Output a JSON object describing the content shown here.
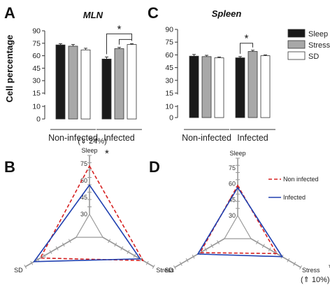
{
  "chart_data": [
    {
      "panel": "A",
      "type": "bar",
      "title": "MLN",
      "ylabel": "Cell percentage",
      "yticks": [
        "0",
        "10",
        "15",
        "30",
        "45",
        "60",
        "75",
        "90"
      ],
      "ylim": [
        0,
        90
      ],
      "axis_break": [
        10,
        15
      ],
      "groups": [
        "Non-infected",
        "Infected"
      ],
      "series": [
        {
          "name": "Sleep",
          "color": "#1a1a1a",
          "values": [
            73,
            56
          ],
          "errors": [
            1.5,
            2.5
          ]
        },
        {
          "name": "Stress",
          "color": "#a8a8a8",
          "values": [
            71.5,
            68.5
          ],
          "errors": [
            2.0,
            1.5
          ]
        },
        {
          "name": "SD",
          "color": "#ffffff",
          "values": [
            67,
            73.5
          ],
          "errors": [
            2.0,
            1.0
          ]
        }
      ],
      "significance": [
        {
          "group": "Infected",
          "from": "Sleep",
          "to": "SD",
          "label": "*"
        },
        {
          "group": "Infected",
          "from": "Stress",
          "to": "SD",
          "label": ""
        }
      ]
    },
    {
      "panel": "C",
      "type": "bar",
      "title": "Spleen",
      "yticks": [
        "0",
        "10",
        "15",
        "30",
        "45",
        "60",
        "75",
        "90"
      ],
      "ylim": [
        0,
        90
      ],
      "axis_break": [
        10,
        15
      ],
      "groups": [
        "Non-infected",
        "Infected"
      ],
      "series": [
        {
          "name": "Sleep",
          "color": "#1a1a1a",
          "values": [
            58.5,
            56.5
          ],
          "errors": [
            2.0,
            1.5
          ]
        },
        {
          "name": "Stress",
          "color": "#a8a8a8",
          "values": [
            58,
            64
          ],
          "errors": [
            1.5,
            1.5
          ]
        },
        {
          "name": "SD",
          "color": "#ffffff",
          "values": [
            56.5,
            59
          ],
          "errors": [
            1.0,
            1.0
          ]
        }
      ],
      "significance": [
        {
          "group": "Infected",
          "from": "Sleep",
          "to": "Stress",
          "label": "*"
        }
      ],
      "legend": [
        "Sleep",
        "Stress",
        "SD"
      ]
    },
    {
      "panel": "B",
      "type": "radar",
      "axes": [
        "Sleep",
        "Stress",
        "SD"
      ],
      "rticks": [
        "30",
        "45",
        "60",
        "75"
      ],
      "rlim": [
        30,
        75
      ],
      "series": [
        {
          "name": "Non infected",
          "color": "#d62020",
          "dash": true,
          "values": [
            73,
            71.5,
            67
          ]
        },
        {
          "name": "Infected",
          "color": "#2040b0",
          "dash": false,
          "values": [
            56,
            68.5,
            73.5
          ]
        }
      ],
      "annotations": [
        {
          "axis": "Sleep",
          "text": "(⇓ 24%)",
          "star": "*"
        }
      ]
    },
    {
      "panel": "D",
      "type": "radar",
      "axes": [
        "Sleep",
        "Stress",
        "SD"
      ],
      "rticks": [
        "30",
        "45",
        "60",
        "75"
      ],
      "rlim": [
        30,
        75
      ],
      "series": [
        {
          "name": "Non infected",
          "color": "#d62020",
          "dash": true,
          "values": [
            58.5,
            58,
            56.5
          ]
        },
        {
          "name": "Infected",
          "color": "#2040b0",
          "dash": false,
          "values": [
            56.5,
            64,
            59
          ]
        }
      ],
      "annotations": [
        {
          "axis": "Stress",
          "text": "(⇑ 10%)",
          "star": "*"
        }
      ],
      "legend": [
        "Non infected",
        "Infected"
      ]
    }
  ]
}
